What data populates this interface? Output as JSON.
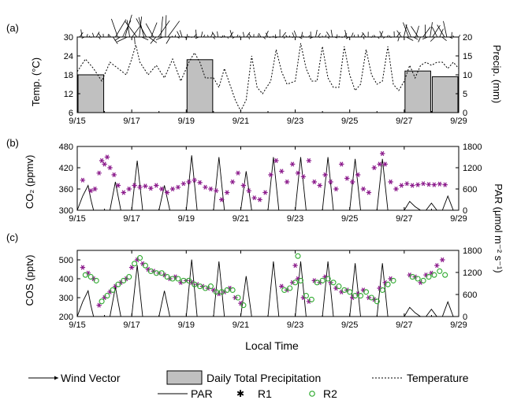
{
  "x_tick_labels": [
    "9/15",
    "9/17",
    "9/19",
    "9/21",
    "9/23",
    "9/25",
    "9/27",
    "9/29"
  ],
  "xlabel": "Local Time",
  "panels": {
    "a": {
      "label": "(a)",
      "ylabel_left": "Temp. (°C)",
      "ylabel_right": "Precip. (mm)"
    },
    "b": {
      "label": "(b)",
      "ylabel_left": "CO₂ (ppmv)"
    },
    "c": {
      "label": "(c)",
      "ylabel_left": "COS (pptv)"
    },
    "par_axis_label": "PAR (μmol m⁻² s⁻¹)"
  },
  "legend": {
    "wind": "Wind Vector",
    "precip": "Daily Total Precipitation",
    "temp": "Temperature",
    "par": "PAR",
    "r1": "R1",
    "r2": "R2"
  },
  "colors": {
    "r1": "#8b1a8b",
    "r2": "#2eaa2e",
    "precip_fill": "#c0c0c0",
    "line": "#000000"
  },
  "chart_data": [
    {
      "panel": "a",
      "type": "bar",
      "title": "",
      "xlim": [
        "9/15",
        "9/29"
      ],
      "ylim_left": [
        6,
        30
      ],
      "yticks_left": [
        6,
        12,
        18,
        24,
        30
      ],
      "ylim_right": [
        0,
        20
      ],
      "yticks_right": [
        0,
        5,
        10,
        15,
        20
      ],
      "precipitation": {
        "name": "Daily Total Precipitation",
        "days": [
          "9/15",
          "9/19",
          "9/27",
          "9/28"
        ],
        "values_mm": [
          10,
          14,
          11,
          9.5
        ]
      },
      "temperature": {
        "name": "Temperature",
        "x_day": [
          15.0,
          15.3,
          15.6,
          15.9,
          16.2,
          16.5,
          16.8,
          17.0,
          17.15,
          17.3,
          17.6,
          17.9,
          18.2,
          18.5,
          18.8,
          19.1,
          19.3,
          19.5,
          19.7,
          20.0,
          20.2,
          20.4,
          20.6,
          20.8,
          21.0,
          21.2,
          21.4,
          21.6,
          21.8,
          22.1,
          22.3,
          22.5,
          22.7,
          23.0,
          23.2,
          23.4,
          23.6,
          23.8,
          24.0,
          24.2,
          24.4,
          24.6,
          24.8,
          25.0,
          25.2,
          25.4,
          25.6,
          25.8,
          26.0,
          26.2,
          26.4,
          26.6,
          26.8,
          27.0,
          27.2,
          27.4,
          27.6,
          27.8,
          28.0,
          28.2,
          28.4,
          28.6,
          28.8,
          29.0
        ],
        "values_c": [
          19,
          23,
          20,
          16,
          22,
          20,
          18,
          23,
          27.5,
          22,
          18,
          21,
          17,
          23,
          16,
          22,
          25,
          22,
          17,
          17,
          14,
          20,
          15,
          10,
          6.5,
          10,
          24,
          14,
          12,
          16,
          26,
          19,
          15,
          16,
          28,
          20,
          16,
          16,
          27,
          17,
          14,
          14,
          27,
          18,
          13,
          15,
          26,
          18,
          15,
          16,
          27,
          15,
          13,
          16,
          21,
          17,
          21,
          22,
          21,
          22,
          22,
          20,
          22,
          20
        ]
      }
    },
    {
      "panel": "b",
      "type": "scatter",
      "title": "",
      "xlim": [
        "9/15",
        "9/29"
      ],
      "ylim_left": [
        300,
        480
      ],
      "yticks_left": [
        300,
        360,
        420,
        480
      ],
      "ylim_right": [
        0,
        1800
      ],
      "yticks_right": [
        0,
        600,
        1200,
        1800
      ],
      "r1_co2": {
        "name": "R1",
        "x_day": [
          15.2,
          15.5,
          15.65,
          15.8,
          15.9,
          16.0,
          16.1,
          16.2,
          16.35,
          16.5,
          16.7,
          16.9,
          17.1,
          17.3,
          17.5,
          17.7,
          17.9,
          18.1,
          18.3,
          18.5,
          18.7,
          18.9,
          19.1,
          19.3,
          19.5,
          19.7,
          19.9,
          20.1,
          20.3,
          20.5,
          20.7,
          20.9,
          21.1,
          21.3,
          21.5,
          21.7,
          21.9,
          22.1,
          22.3,
          22.5,
          22.7,
          22.9,
          23.1,
          23.3,
          23.5,
          23.7,
          23.9,
          24.1,
          24.3,
          24.5,
          24.7,
          24.9,
          25.1,
          25.3,
          25.5,
          25.7,
          25.9,
          26.1,
          26.2,
          26.3,
          26.5,
          26.7,
          26.9,
          27.1,
          27.3,
          27.5,
          27.7,
          27.9,
          28.1,
          28.3,
          28.5
        ],
        "values_ppmv": [
          385,
          355,
          360,
          405,
          440,
          430,
          450,
          420,
          400,
          370,
          350,
          360,
          370,
          365,
          368,
          362,
          370,
          360,
          350,
          360,
          365,
          375,
          380,
          385,
          378,
          365,
          360,
          355,
          330,
          350,
          380,
          405,
          370,
          355,
          335,
          330,
          350,
          400,
          440,
          410,
          380,
          430,
          405,
          395,
          440,
          380,
          370,
          400,
          380,
          360,
          430,
          390,
          380,
          400,
          360,
          350,
          420,
          430,
          460,
          430,
          380,
          360,
          370,
          375,
          370,
          372,
          375,
          373,
          372,
          374,
          372
        ]
      },
      "par": {
        "name": "PAR",
        "x_day": [
          15.0,
          15.2,
          15.4,
          15.5,
          15.6,
          15.8,
          16.0,
          16.2,
          16.4,
          16.6,
          16.8,
          17.0,
          17.2,
          17.4,
          17.6,
          17.8,
          18.0,
          18.2,
          18.4,
          18.6,
          18.8,
          19.0,
          19.2,
          19.4,
          19.6,
          19.8,
          20.0,
          20.2,
          20.4,
          20.6,
          20.8,
          21.0,
          21.2,
          21.4,
          21.6,
          21.8,
          22.0,
          22.2,
          22.4,
          22.6,
          22.8,
          23.0,
          23.2,
          23.4,
          23.6,
          23.8,
          24.0,
          24.2,
          24.4,
          24.6,
          24.8,
          25.0,
          25.2,
          25.4,
          25.6,
          25.8,
          26.0,
          26.2,
          26.4,
          26.6,
          26.8,
          27.0,
          27.2,
          27.4,
          27.6,
          27.8,
          28.0,
          28.2,
          28.4,
          28.6,
          28.8,
          29.0
        ],
        "values": [
          0,
          400,
          700,
          300,
          0,
          0,
          0,
          0,
          800,
          0,
          0,
          0,
          1400,
          0,
          0,
          0,
          0,
          700,
          0,
          0,
          0,
          0,
          1550,
          0,
          0,
          0,
          0,
          1500,
          0,
          0,
          0,
          0,
          1100,
          0,
          0,
          0,
          0,
          1500,
          0,
          0,
          0,
          0,
          1500,
          0,
          0,
          0,
          0,
          1500,
          0,
          0,
          0,
          0,
          1450,
          0,
          0,
          0,
          0,
          1450,
          0,
          0,
          0,
          0,
          250,
          100,
          0,
          0,
          200,
          0,
          0,
          400,
          0,
          0
        ]
      }
    },
    {
      "panel": "c",
      "type": "scatter",
      "title": "",
      "xlim": [
        "9/15",
        "9/29"
      ],
      "ylim_left": [
        200,
        550
      ],
      "yticks_left": [
        200,
        300,
        400,
        500
      ],
      "ylim_right": [
        0,
        1800
      ],
      "yticks_right": [
        0,
        600,
        1200,
        1800
      ],
      "r1_cos": {
        "name": "R1",
        "x_day": [
          15.2,
          15.4,
          15.6,
          15.8,
          16.0,
          16.2,
          16.4,
          16.6,
          16.8,
          17.0,
          17.2,
          17.4,
          17.6,
          17.8,
          18.0,
          18.2,
          18.4,
          18.6,
          18.8,
          19.0,
          19.2,
          19.4,
          19.6,
          19.8,
          20.0,
          20.2,
          20.4,
          20.6,
          20.8,
          21.0,
          22.5,
          22.7,
          22.9,
          23.0,
          23.1,
          23.3,
          23.5,
          23.7,
          23.9,
          24.1,
          24.3,
          24.5,
          24.7,
          24.9,
          25.1,
          25.3,
          25.5,
          25.7,
          25.9,
          26.1,
          26.3,
          26.5,
          27.2,
          27.4,
          27.6,
          27.8,
          28.0,
          28.2,
          28.4
        ],
        "values_pptv": [
          460,
          430,
          400,
          260,
          300,
          330,
          360,
          380,
          400,
          460,
          500,
          480,
          450,
          440,
          430,
          420,
          400,
          410,
          380,
          390,
          380,
          370,
          360,
          350,
          340,
          320,
          330,
          350,
          300,
          270,
          360,
          340,
          380,
          470,
          400,
          300,
          280,
          390,
          380,
          410,
          380,
          350,
          330,
          340,
          300,
          320,
          340,
          300,
          290,
          350,
          380,
          400,
          420,
          410,
          380,
          420,
          430,
          470,
          500
        ]
      },
      "r2_cos": {
        "name": "R2",
        "x_day": [
          15.3,
          15.5,
          15.7,
          15.9,
          16.1,
          16.3,
          16.5,
          16.7,
          16.9,
          17.1,
          17.3,
          17.5,
          17.7,
          17.9,
          18.1,
          18.3,
          18.5,
          18.7,
          18.9,
          19.1,
          19.3,
          19.5,
          19.7,
          19.9,
          20.1,
          20.3,
          20.5,
          20.7,
          20.9,
          21.1,
          22.6,
          22.8,
          23.0,
          23.1,
          23.2,
          23.4,
          23.6,
          23.8,
          24.0,
          24.2,
          24.4,
          24.6,
          24.8,
          25.0,
          25.2,
          25.4,
          25.6,
          25.8,
          26.0,
          26.2,
          26.4,
          26.6,
          27.3,
          27.5,
          27.7,
          27.9,
          28.1,
          28.3,
          28.5
        ],
        "values_pptv": [
          420,
          410,
          390,
          280,
          310,
          340,
          370,
          390,
          410,
          480,
          510,
          470,
          440,
          430,
          430,
          410,
          400,
          400,
          390,
          390,
          370,
          360,
          350,
          360,
          330,
          330,
          340,
          340,
          300,
          260,
          340,
          350,
          380,
          520,
          390,
          310,
          290,
          380,
          390,
          400,
          380,
          360,
          340,
          330,
          310,
          310,
          330,
          300,
          280,
          340,
          370,
          390,
          410,
          400,
          390,
          410,
          420,
          440,
          420
        ]
      },
      "par": {
        "name": "PAR",
        "x_day": [
          15.0,
          15.2,
          15.4,
          15.5,
          15.6,
          15.8,
          16.0,
          16.2,
          16.4,
          16.6,
          16.8,
          17.0,
          17.2,
          17.4,
          17.6,
          17.8,
          18.0,
          18.2,
          18.4,
          18.6,
          18.8,
          19.0,
          19.2,
          19.4,
          19.6,
          19.8,
          20.0,
          20.2,
          20.4,
          20.6,
          20.8,
          21.0,
          21.2,
          21.4,
          21.6,
          21.8,
          22.0,
          22.2,
          22.4,
          22.6,
          22.8,
          23.0,
          23.2,
          23.4,
          23.6,
          23.8,
          24.0,
          24.2,
          24.4,
          24.6,
          24.8,
          25.0,
          25.2,
          25.4,
          25.6,
          25.8,
          26.0,
          26.2,
          26.4,
          26.6,
          26.8,
          27.0,
          27.2,
          27.4,
          27.6,
          27.8,
          28.0,
          28.2,
          28.4,
          28.6,
          28.8,
          29.0
        ],
        "values": [
          0,
          400,
          700,
          300,
          0,
          0,
          0,
          0,
          800,
          0,
          0,
          0,
          1400,
          0,
          0,
          0,
          0,
          700,
          0,
          0,
          0,
          0,
          1550,
          0,
          0,
          0,
          0,
          1500,
          0,
          0,
          0,
          0,
          1100,
          0,
          0,
          0,
          0,
          1500,
          0,
          0,
          0,
          0,
          1500,
          0,
          0,
          0,
          0,
          1500,
          0,
          0,
          0,
          0,
          1450,
          0,
          0,
          0,
          0,
          1450,
          0,
          0,
          0,
          0,
          250,
          100,
          0,
          0,
          200,
          0,
          0,
          400,
          0,
          0
        ]
      }
    }
  ]
}
